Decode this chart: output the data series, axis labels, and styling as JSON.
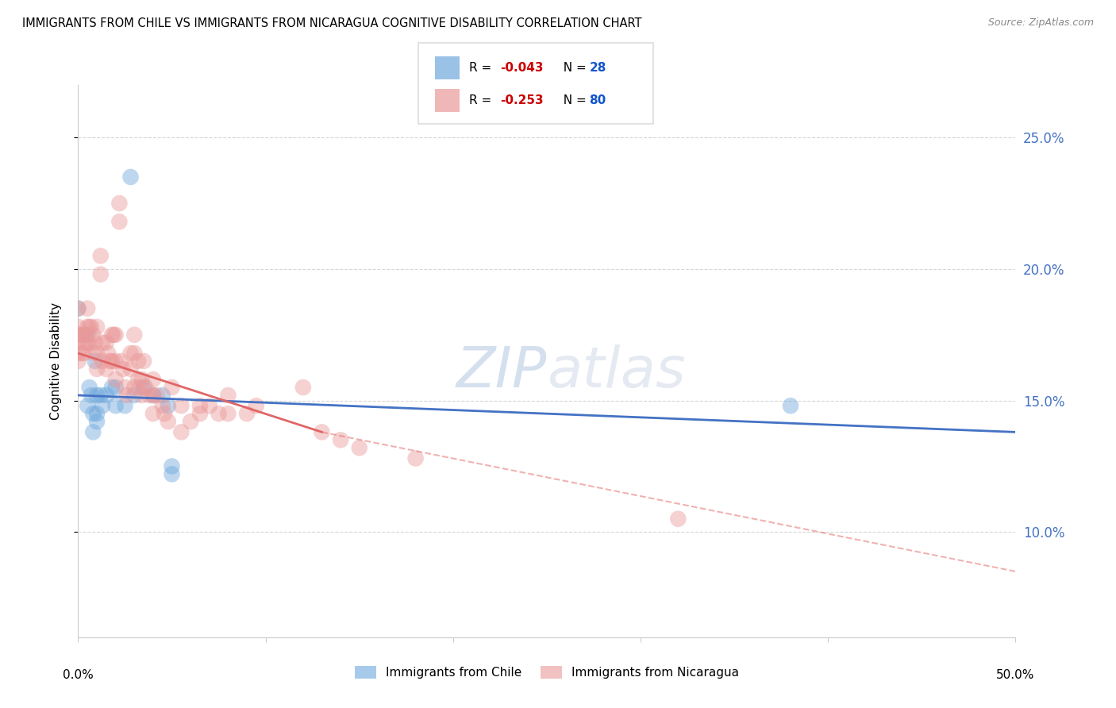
{
  "title": "IMMIGRANTS FROM CHILE VS IMMIGRANTS FROM NICARAGUA COGNITIVE DISABILITY CORRELATION CHART",
  "source": "Source: ZipAtlas.com",
  "ylabel": "Cognitive Disability",
  "xlim": [
    0.0,
    0.5
  ],
  "ylim": [
    0.06,
    0.27
  ],
  "chile_color": "#6fa8dc",
  "nicaragua_color": "#ea9999",
  "chile_line_color": "#4472c4",
  "nicaragua_line_color": "#e06666",
  "watermark_zip": "ZIP",
  "watermark_atlas": "atlas",
  "grid_color": "#cccccc",
  "background_color": "#ffffff",
  "legend_r_color": "#cc0000",
  "legend_n_color": "#1155cc",
  "right_tick_color": "#4472c4",
  "chile_points": [
    [
      0.0,
      0.185
    ],
    [
      0.005,
      0.175
    ],
    [
      0.005,
      0.148
    ],
    [
      0.006,
      0.155
    ],
    [
      0.007,
      0.152
    ],
    [
      0.008,
      0.145
    ],
    [
      0.008,
      0.138
    ],
    [
      0.009,
      0.165
    ],
    [
      0.01,
      0.152
    ],
    [
      0.01,
      0.145
    ],
    [
      0.01,
      0.142
    ],
    [
      0.012,
      0.152
    ],
    [
      0.013,
      0.148
    ],
    [
      0.015,
      0.152
    ],
    [
      0.018,
      0.155
    ],
    [
      0.02,
      0.155
    ],
    [
      0.02,
      0.148
    ],
    [
      0.025,
      0.148
    ],
    [
      0.028,
      0.235
    ],
    [
      0.03,
      0.152
    ],
    [
      0.035,
      0.155
    ],
    [
      0.04,
      0.152
    ],
    [
      0.045,
      0.152
    ],
    [
      0.048,
      0.148
    ],
    [
      0.05,
      0.125
    ],
    [
      0.05,
      0.122
    ],
    [
      0.38,
      0.148
    ]
  ],
  "nicaragua_points": [
    [
      0.0,
      0.185
    ],
    [
      0.0,
      0.178
    ],
    [
      0.0,
      0.175
    ],
    [
      0.0,
      0.172
    ],
    [
      0.0,
      0.168
    ],
    [
      0.0,
      0.165
    ],
    [
      0.001,
      0.175
    ],
    [
      0.002,
      0.168
    ],
    [
      0.003,
      0.175
    ],
    [
      0.003,
      0.168
    ],
    [
      0.004,
      0.175
    ],
    [
      0.004,
      0.172
    ],
    [
      0.005,
      0.185
    ],
    [
      0.005,
      0.178
    ],
    [
      0.005,
      0.172
    ],
    [
      0.006,
      0.178
    ],
    [
      0.006,
      0.172
    ],
    [
      0.007,
      0.178
    ],
    [
      0.008,
      0.175
    ],
    [
      0.008,
      0.168
    ],
    [
      0.009,
      0.172
    ],
    [
      0.01,
      0.178
    ],
    [
      0.01,
      0.168
    ],
    [
      0.01,
      0.162
    ],
    [
      0.012,
      0.205
    ],
    [
      0.012,
      0.198
    ],
    [
      0.013,
      0.172
    ],
    [
      0.013,
      0.165
    ],
    [
      0.015,
      0.172
    ],
    [
      0.015,
      0.162
    ],
    [
      0.016,
      0.168
    ],
    [
      0.017,
      0.165
    ],
    [
      0.018,
      0.175
    ],
    [
      0.018,
      0.165
    ],
    [
      0.019,
      0.175
    ],
    [
      0.02,
      0.175
    ],
    [
      0.02,
      0.165
    ],
    [
      0.02,
      0.158
    ],
    [
      0.022,
      0.225
    ],
    [
      0.022,
      0.218
    ],
    [
      0.023,
      0.165
    ],
    [
      0.024,
      0.162
    ],
    [
      0.025,
      0.155
    ],
    [
      0.026,
      0.152
    ],
    [
      0.028,
      0.168
    ],
    [
      0.028,
      0.162
    ],
    [
      0.03,
      0.175
    ],
    [
      0.03,
      0.168
    ],
    [
      0.03,
      0.155
    ],
    [
      0.032,
      0.165
    ],
    [
      0.032,
      0.158
    ],
    [
      0.033,
      0.155
    ],
    [
      0.034,
      0.158
    ],
    [
      0.034,
      0.152
    ],
    [
      0.035,
      0.165
    ],
    [
      0.036,
      0.155
    ],
    [
      0.038,
      0.152
    ],
    [
      0.04,
      0.158
    ],
    [
      0.04,
      0.152
    ],
    [
      0.04,
      0.145
    ],
    [
      0.042,
      0.152
    ],
    [
      0.045,
      0.148
    ],
    [
      0.046,
      0.145
    ],
    [
      0.048,
      0.142
    ],
    [
      0.05,
      0.155
    ],
    [
      0.055,
      0.148
    ],
    [
      0.055,
      0.138
    ],
    [
      0.06,
      0.142
    ],
    [
      0.065,
      0.148
    ],
    [
      0.065,
      0.145
    ],
    [
      0.07,
      0.148
    ],
    [
      0.075,
      0.145
    ],
    [
      0.08,
      0.152
    ],
    [
      0.08,
      0.145
    ],
    [
      0.09,
      0.145
    ],
    [
      0.095,
      0.148
    ],
    [
      0.12,
      0.155
    ],
    [
      0.13,
      0.138
    ],
    [
      0.14,
      0.135
    ],
    [
      0.15,
      0.132
    ],
    [
      0.18,
      0.128
    ],
    [
      0.32,
      0.105
    ]
  ],
  "chile_line_manual": [
    [
      0.0,
      0.152
    ],
    [
      0.5,
      0.138
    ]
  ],
  "nicaragua_line_solid": [
    [
      0.0,
      0.168
    ],
    [
      0.13,
      0.138
    ]
  ],
  "nicaragua_line_dashed": [
    [
      0.13,
      0.138
    ],
    [
      0.5,
      0.085
    ]
  ]
}
